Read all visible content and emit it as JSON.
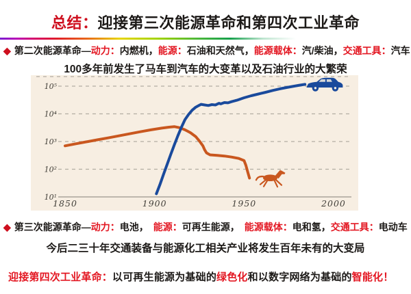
{
  "palette": {
    "title_red": "#ce0f1e",
    "red": "#e31722",
    "black": "#1c1917",
    "chart_bg": "#f7eee2",
    "line_blue": "#1a4a9c",
    "line_orange": "#c9571f",
    "grid_gray": "#b3ada2",
    "axis_line": "#9a958b",
    "axis_text": "#43403a"
  },
  "title": {
    "segments": [
      {
        "text": "总结：",
        "color": "title_red"
      },
      {
        "text": "迎接第三次能源革命和第四次工业革命",
        "color": "black"
      }
    ]
  },
  "bullets": {
    "marker": "◆",
    "second": {
      "segments": [
        {
          "text": "第二次能源革命—",
          "color": "black"
        },
        {
          "text": "动力：",
          "color": "red"
        },
        {
          "text": "内燃机，",
          "color": "black"
        },
        {
          "text": "能源：",
          "color": "red"
        },
        {
          "text": "石油和天然气，",
          "color": "black"
        },
        {
          "text": "能源载体：",
          "color": "red"
        },
        {
          "text": "汽/柴油，",
          "color": "black"
        },
        {
          "text": "交通工具：",
          "color": "red"
        },
        {
          "text": "汽车",
          "color": "black"
        }
      ]
    },
    "third": {
      "segments": [
        {
          "text": "第三次能源革命—",
          "color": "black"
        },
        {
          "text": "动力：",
          "color": "red"
        },
        {
          "text": "电池，　",
          "color": "black"
        },
        {
          "text": "能源：",
          "color": "red"
        },
        {
          "text": "可再生能源，　",
          "color": "black"
        },
        {
          "text": "能源载体：",
          "color": "red"
        },
        {
          "text": "电和氢，",
          "color": "black"
        },
        {
          "text": "交通工具：",
          "color": "red"
        },
        {
          "text": "电动车",
          "color": "black"
        }
      ]
    }
  },
  "subtitle_second": "100多年前发生了马车到汽车的大变革以及石油行业的大繁荣",
  "subtitle_third": "今后二三十年交通装备与能源化工相关产业将发生百年未有的大变局",
  "footer": {
    "segments": [
      {
        "text": "迎接第四次工业革命：",
        "color": "red"
      },
      {
        "text": "以可再生能源为基础的",
        "color": "black"
      },
      {
        "text": "绿色化",
        "color": "red"
      },
      {
        "text": "和以数字网络为基础的",
        "color": "black"
      },
      {
        "text": "智能化！",
        "color": "red"
      }
    ]
  },
  "chart_data": {
    "type": "line",
    "title": "",
    "xlabel": "",
    "ylabel": "",
    "y_scale": "log",
    "grid": "dashed-horizontal",
    "legend": "none",
    "xlim": [
      1843,
      2008
    ],
    "ylim": [
      10,
      250000
    ],
    "x_ticks": [
      1850,
      1900,
      1950,
      2000
    ],
    "y_ticks": [
      "10⁵",
      "10⁴",
      "10³",
      "10²",
      "10¹"
    ],
    "series": [
      {
        "name": "horses",
        "color": "#c9571f",
        "points": [
          [
            1850,
            700
          ],
          [
            1856,
            830
          ],
          [
            1862,
            980
          ],
          [
            1868,
            1150
          ],
          [
            1874,
            1350
          ],
          [
            1880,
            1600
          ],
          [
            1886,
            1900
          ],
          [
            1892,
            2250
          ],
          [
            1898,
            2650
          ],
          [
            1904,
            3050
          ],
          [
            1908,
            3300
          ],
          [
            1911,
            3450
          ],
          [
            1914,
            3150
          ],
          [
            1917,
            2650
          ],
          [
            1920,
            2100
          ],
          [
            1923,
            1500
          ],
          [
            1925,
            1050
          ],
          [
            1927,
            700
          ],
          [
            1928,
            500
          ],
          [
            1929,
            390
          ],
          [
            1931,
            330
          ],
          [
            1935,
            315
          ],
          [
            1939,
            300
          ],
          [
            1943,
            275
          ],
          [
            1947,
            245
          ],
          [
            1950,
            205
          ],
          [
            1951,
            140
          ],
          [
            1952,
            80
          ],
          [
            1953,
            48
          ]
        ]
      },
      {
        "name": "cars",
        "color": "#1a4a9c",
        "points": [
          [
            1901,
            13
          ],
          [
            1903,
            28
          ],
          [
            1905,
            65
          ],
          [
            1907,
            150
          ],
          [
            1909,
            340
          ],
          [
            1911,
            750
          ],
          [
            1913,
            1600
          ],
          [
            1915,
            3300
          ],
          [
            1917,
            6200
          ],
          [
            1919,
            9500
          ],
          [
            1921,
            13500
          ],
          [
            1923,
            17500
          ],
          [
            1925,
            20500
          ],
          [
            1926,
            22000
          ],
          [
            1928,
            21000
          ],
          [
            1930,
            20000
          ],
          [
            1932,
            21500
          ],
          [
            1934,
            21000
          ],
          [
            1936,
            24000
          ],
          [
            1937,
            23000
          ],
          [
            1939,
            25500
          ],
          [
            1941,
            25000
          ],
          [
            1943,
            27500
          ],
          [
            1946,
            31000
          ],
          [
            1950,
            38000
          ],
          [
            1954,
            45000
          ],
          [
            1958,
            52000
          ],
          [
            1962,
            60000
          ],
          [
            1966,
            70000
          ],
          [
            1970,
            80000
          ],
          [
            1974,
            90000
          ],
          [
            1978,
            100000
          ],
          [
            1981,
            108000
          ],
          [
            1984,
            116000
          ]
        ]
      }
    ],
    "icons": [
      {
        "name": "horse-icon",
        "year": 1965,
        "value": 46,
        "color": "#c9571f"
      },
      {
        "name": "car-icon",
        "year": 1995,
        "value": 112000,
        "color": "#1a4a9c"
      }
    ]
  }
}
